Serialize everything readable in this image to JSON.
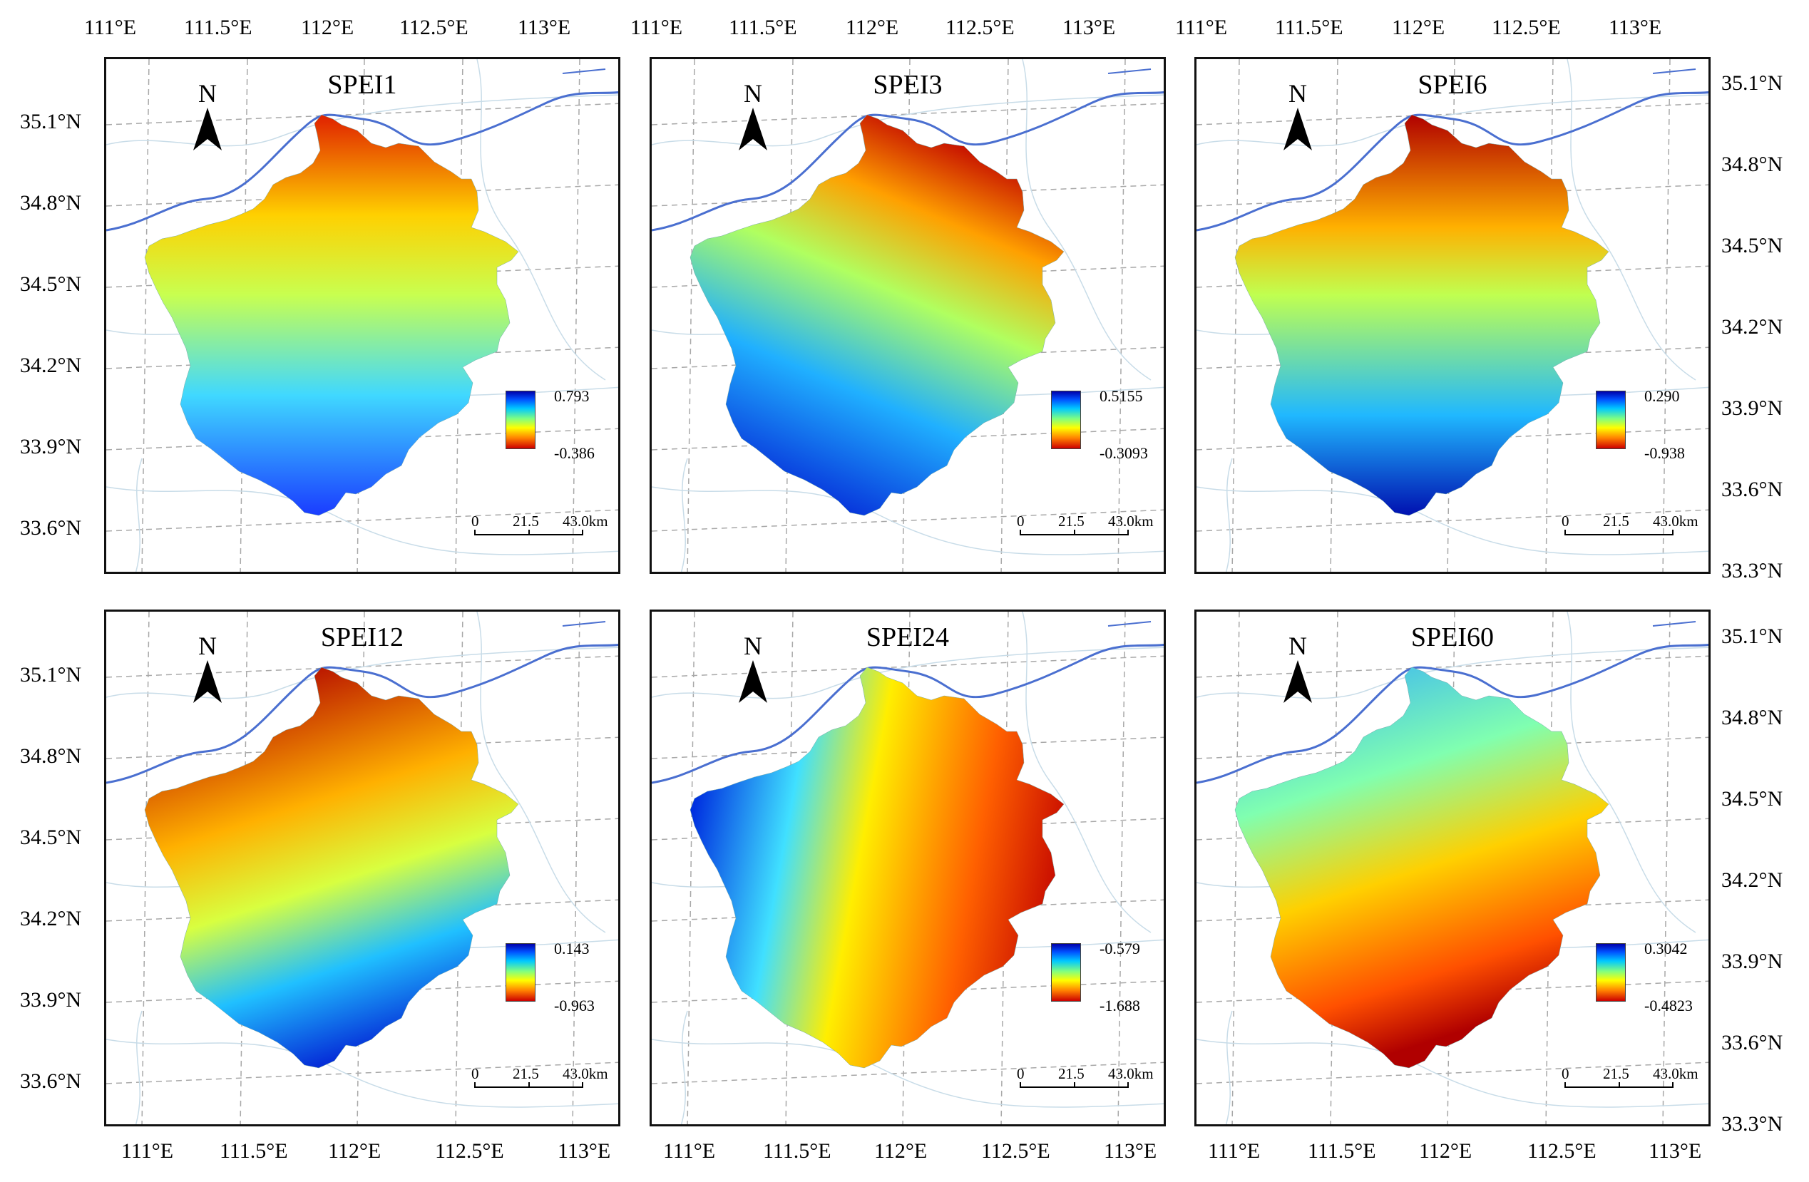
{
  "top_longitude_labels": [
    "111°E",
    "111.5°E",
    "112°E",
    "112.5°E",
    "113°E"
  ],
  "bottom_longitude_labels": [
    "111°E",
    "111.5°E",
    "112°E",
    "112.5°E",
    "113°E"
  ],
  "left_latitude_labels": [
    "35.1°N",
    "34.8°N",
    "34.5°N",
    "34.2°N",
    "33.9°N",
    "33.6°N"
  ],
  "right_latitude_labels": [
    "35.1°N",
    "34.8°N",
    "34.5°N",
    "34.2°N",
    "33.9°N",
    "33.6°N",
    "33.3°N"
  ],
  "north_label": "N",
  "scale_labels": [
    "0",
    "21.5",
    "43.0km"
  ],
  "colors": {
    "high": "#0000cc",
    "mid": "#ffff00",
    "low": "#cc0000",
    "river": "#4a6fd0",
    "grid": "#9a9a9a"
  },
  "panels": [
    {
      "title": "SPEI1",
      "legend_max": "0.793",
      "legend_min": "-0.386"
    },
    {
      "title": "SPEI3",
      "legend_max": "0.5155",
      "legend_min": "-0.3093"
    },
    {
      "title": "SPEI6",
      "legend_max": "0.290",
      "legend_min": "-0.938"
    },
    {
      "title": "SPEI12",
      "legend_max": "0.143",
      "legend_min": "-0.963"
    },
    {
      "title": "SPEI24",
      "legend_max": "-0.579",
      "legend_min": "-1.688"
    },
    {
      "title": "SPEI60",
      "legend_max": "0.3042",
      "legend_min": "-0.4823"
    }
  ]
}
